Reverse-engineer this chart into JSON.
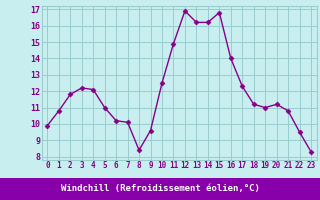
{
  "x": [
    0,
    1,
    2,
    3,
    4,
    5,
    6,
    7,
    8,
    9,
    10,
    11,
    12,
    13,
    14,
    15,
    16,
    17,
    18,
    19,
    20,
    21,
    22,
    23
  ],
  "y": [
    9.9,
    10.8,
    11.8,
    12.2,
    12.1,
    11.0,
    10.2,
    10.1,
    8.4,
    9.6,
    12.5,
    14.9,
    16.9,
    16.2,
    16.2,
    16.8,
    14.0,
    12.3,
    11.2,
    11.0,
    11.2,
    10.8,
    9.5,
    8.3
  ],
  "line_color": "#880088",
  "marker": "D",
  "marker_size": 2.5,
  "bg_color": "#c8eef0",
  "grid_color": "#99cccc",
  "xlabel": "Windchill (Refroidissement éolien,°C)",
  "xlabel_color": "#880088",
  "xlabel_bg": "#8800aa",
  "tick_color": "#880088",
  "ylim": [
    7.8,
    17.2
  ],
  "xlim": [
    -0.5,
    23.5
  ],
  "yticks": [
    8,
    9,
    10,
    11,
    12,
    13,
    14,
    15,
    16,
    17
  ],
  "xticks": [
    0,
    1,
    2,
    3,
    4,
    5,
    6,
    7,
    8,
    9,
    10,
    11,
    12,
    13,
    14,
    15,
    16,
    17,
    18,
    19,
    20,
    21,
    22,
    23
  ]
}
